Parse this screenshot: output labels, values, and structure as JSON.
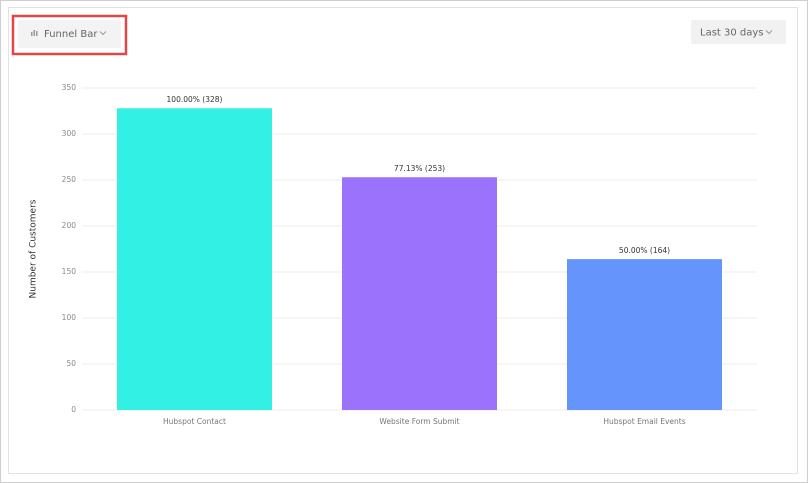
{
  "toolbar": {
    "chart_type": "Funnel Bar",
    "date_range": "Last 30 days"
  },
  "chart_data": {
    "type": "bar",
    "y_label": "Number of Customers",
    "categories": [
      "Hubspot Contact",
      "Website Form Submit",
      "Hubspot Email Events"
    ],
    "values": [
      328,
      253,
      164
    ],
    "value_labels": [
      "100.00% (328)",
      "77.13% (253)",
      "50.00% (164)"
    ],
    "colors": [
      "#33f0e4",
      "#9b72fb",
      "#6694fd"
    ],
    "ylim": [
      0,
      350
    ],
    "yticks": [
      0,
      50,
      100,
      150,
      200,
      250,
      300,
      350
    ],
    "grid": true
  }
}
